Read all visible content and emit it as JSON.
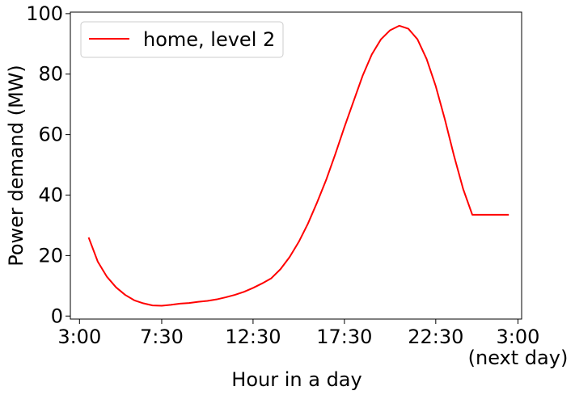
{
  "chart_data": {
    "type": "line",
    "xlabel": "Hour in a day",
    "ylabel": "Power demand (MW)",
    "x_unit": "hour",
    "xlim": [
      2.5,
      27.2
    ],
    "ylim": [
      -1,
      100.5
    ],
    "grid": false,
    "legend_position": "upper-left",
    "x_ticks": [
      {
        "value": 3,
        "label": "3:00"
      },
      {
        "value": 7.5,
        "label": "7:30"
      },
      {
        "value": 12.5,
        "label": "12:30"
      },
      {
        "value": 17.5,
        "label": "17:30"
      },
      {
        "value": 22.5,
        "label": "22:30"
      },
      {
        "value": 27,
        "label": "3:00",
        "sublabel": "(next day)"
      }
    ],
    "y_ticks": [
      0,
      20,
      40,
      60,
      80,
      100
    ],
    "series": [
      {
        "name": "home, level 2",
        "color": "#ff0000",
        "x": [
          3.5,
          4.0,
          4.5,
          5.0,
          5.5,
          6.0,
          6.5,
          7.0,
          7.5,
          8.0,
          8.5,
          9.0,
          9.5,
          10.0,
          10.5,
          11.0,
          11.5,
          12.0,
          12.5,
          13.0,
          13.5,
          14.0,
          14.5,
          15.0,
          15.5,
          16.0,
          16.5,
          17.0,
          17.5,
          18.0,
          18.5,
          19.0,
          19.5,
          20.0,
          20.5,
          21.0,
          21.5,
          22.0,
          22.5,
          23.0,
          23.5,
          24.0,
          24.5,
          25.0,
          25.5,
          26.0,
          26.5,
          26.9
        ],
        "y": [
          26.0,
          18.0,
          13.0,
          9.5,
          7.0,
          5.2,
          4.2,
          3.5,
          3.4,
          3.7,
          4.1,
          4.3,
          4.7,
          5.0,
          5.5,
          6.2,
          7.0,
          8.0,
          9.3,
          10.8,
          12.5,
          15.5,
          19.5,
          24.5,
          30.5,
          37.5,
          45.0,
          53.5,
          62.5,
          71.0,
          79.5,
          86.5,
          91.5,
          94.5,
          96.0,
          95.0,
          91.5,
          85.0,
          76.0,
          65.0,
          53.0,
          42.0,
          33.5,
          33.5,
          33.5,
          33.5,
          33.5,
          33.5
        ]
      }
    ]
  }
}
